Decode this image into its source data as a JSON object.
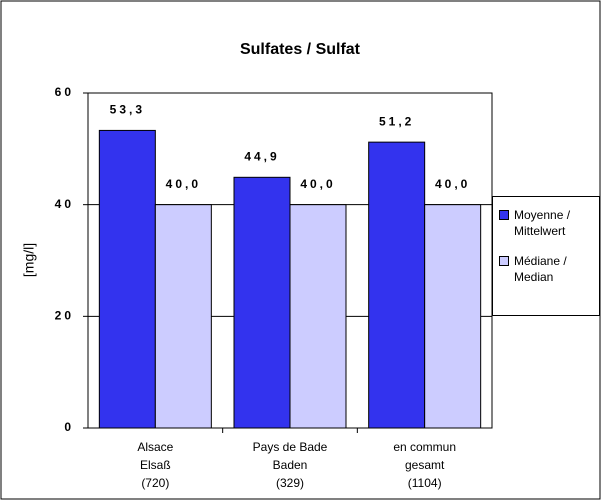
{
  "chart_data": {
    "type": "bar",
    "title": "Sulfates / Sulfat",
    "y_label": "[mg/l]",
    "categories": [
      [
        "Alsace",
        "Elsaß",
        "(720)"
      ],
      [
        "Pays de Bade",
        "Baden",
        "(329)"
      ],
      [
        "en commun",
        "gesamt",
        "(1104)"
      ]
    ],
    "series": [
      {
        "name": "Moyenne / Mittelwert",
        "color": "#3333ee",
        "values": [
          53.3,
          44.9,
          51.2
        ],
        "value_labels": [
          "53,3",
          "44,9",
          "51,2"
        ]
      },
      {
        "name": "Médiane / Median",
        "color": "#ccccff",
        "values": [
          40.0,
          40.0,
          40.0
        ],
        "value_labels": [
          "40,0",
          "40,0",
          "40,0"
        ]
      }
    ],
    "ylim": [
      0,
      60
    ],
    "yticks": [
      0,
      20,
      40,
      60
    ],
    "grid": true,
    "legend": "right"
  }
}
